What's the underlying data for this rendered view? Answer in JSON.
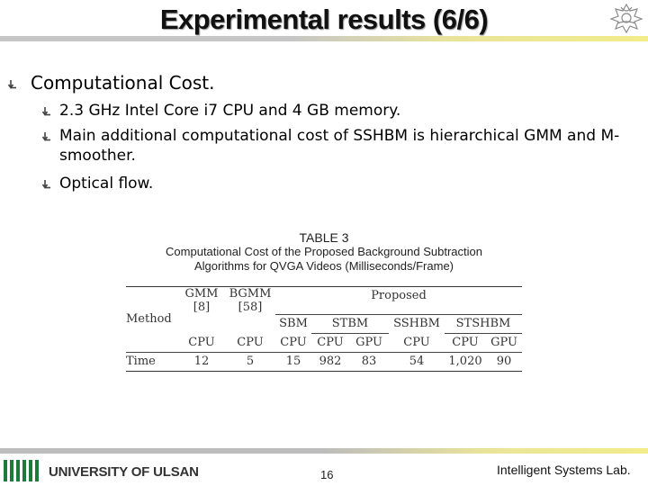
{
  "slide": {
    "title": "Experimental results (6/6)",
    "page_number": "16",
    "footer_left": "UNIVERSITY OF ULSAN",
    "footer_right": "Intelligent Systems Lab."
  },
  "bullets": {
    "main": "Computational Cost.",
    "sub": [
      "2.3 GHz Intel Core i7 CPU and 4 GB memory.",
      "Main additional computational cost of SSHBM is hierarchical GMM and M-smoother.",
      "Optical flow."
    ]
  },
  "table": {
    "caption_number": "TABLE 3",
    "caption_line1": "Computational Cost of the Proposed Background Subtraction",
    "caption_line2": "Algorithms for QVGA Videos (Milliseconds/Frame)",
    "method_label": "Method",
    "proposed_label": "Proposed",
    "gmm_name": "GMM",
    "gmm_ref": "[8]",
    "bgmm_name": "BGMM",
    "bgmm_ref": "[58]",
    "sbm": "SBM",
    "stbm": "STBM",
    "sshbm": "SSHBM",
    "stshbm": "STSHBM",
    "units": [
      "CPU",
      "CPU",
      "CPU",
      "CPU",
      "GPU",
      "CPU",
      "CPU",
      "GPU"
    ],
    "row_label": "Time",
    "values": [
      "12",
      "5",
      "15",
      "982",
      "83",
      "54",
      "1,020",
      "90"
    ]
  },
  "colors": {
    "rule_gray": "#c6c6c6",
    "rule_yellow": "#f2ec8a"
  }
}
